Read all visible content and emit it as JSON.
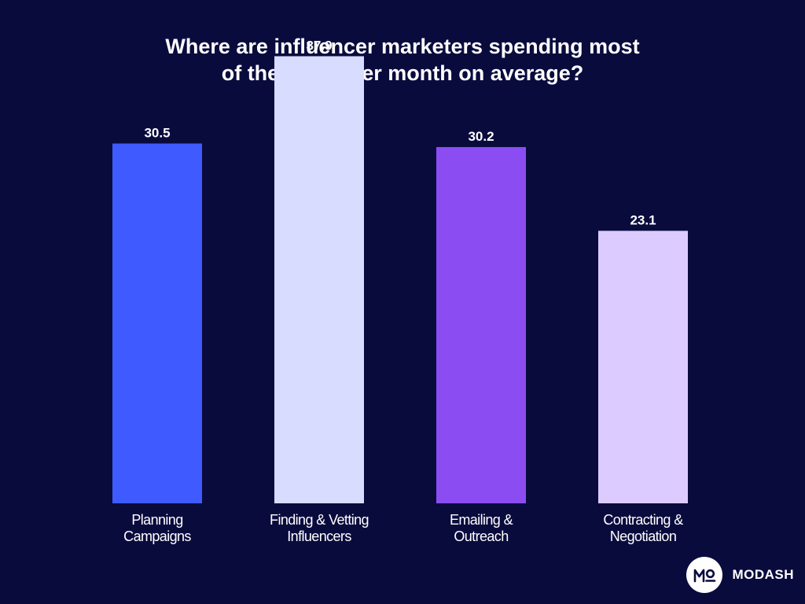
{
  "chart_data": {
    "type": "bar",
    "title_lines": [
      "Where are influencer marketers spending most",
      "of their time per month on average?"
    ],
    "categories": [
      [
        "Planning",
        "Campaigns"
      ],
      [
        "Finding & Vetting",
        "Influencers"
      ],
      [
        "Emailing &",
        "Outreach"
      ],
      [
        "Contracting &",
        "Negotiation"
      ]
    ],
    "values": [
      30.5,
      37.9,
      30.2,
      23.1
    ],
    "value_labels": [
      "30.5",
      "37.9",
      "30.2",
      "23.1"
    ],
    "colors": [
      "#3f5bff",
      "#d8dcff",
      "#8b4df2",
      "#dccbff"
    ],
    "ylim": [
      0,
      40
    ],
    "grid": false,
    "legend": "none"
  },
  "brand": {
    "logo_text": "MO",
    "name": "MODASH"
  },
  "colors": {
    "background": "#0a0b3d",
    "text": "#ffffff"
  }
}
